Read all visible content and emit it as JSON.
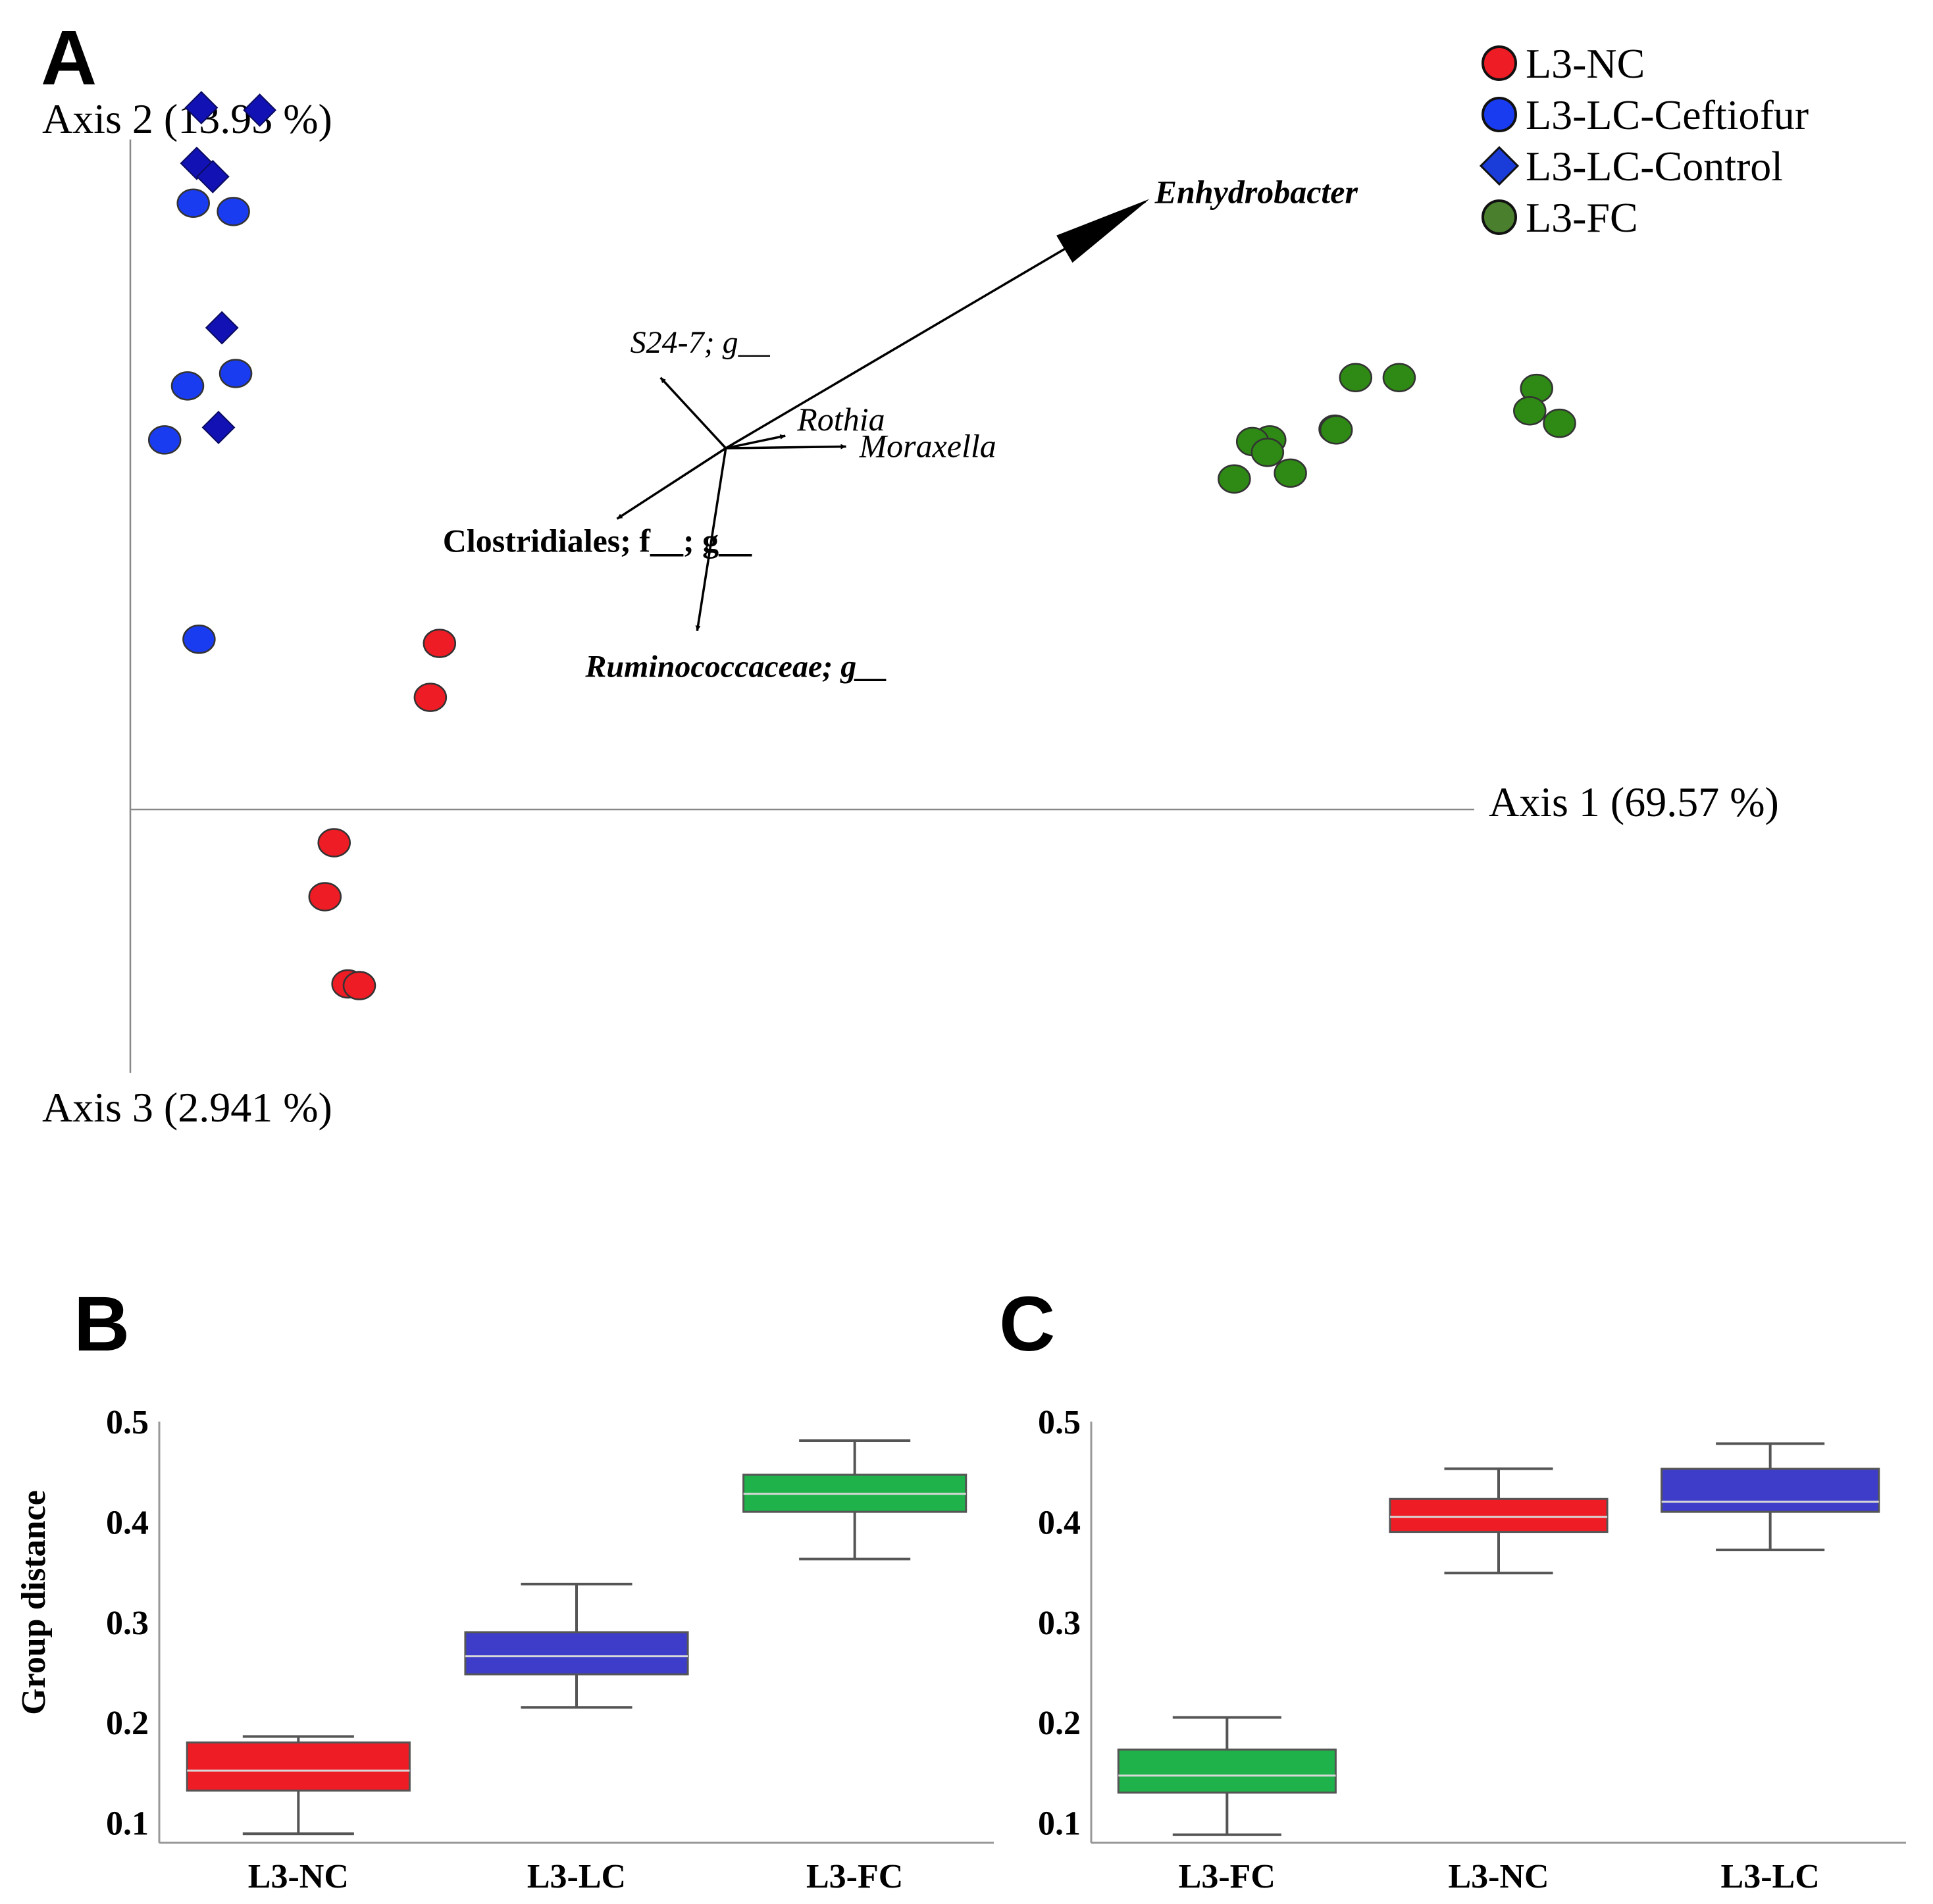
{
  "chart_data": [
    {
      "panel": "A",
      "type": "scatter",
      "title": "",
      "axes": {
        "axis1": "Axis 1 (69.57 %)",
        "axis2": "Axis 2 (13.93 %)",
        "axis3": "Axis 3 (2.941 %)"
      },
      "legend_position": "top-right",
      "series": [
        {
          "name": "L3-NC",
          "shape": "circle",
          "color": "#ee1c24",
          "points": [
            [
              0.27,
              0.2
            ],
            [
              0.262,
              0.135
            ],
            [
              0.178,
              -0.04
            ],
            [
              0.17,
              -0.105
            ],
            [
              0.19,
              -0.21
            ],
            [
              0.2,
              -0.212
            ]
          ]
        },
        {
          "name": "L3-LC-Ceftiofur",
          "shape": "circle",
          "color": "#1a3cf0",
          "points": [
            [
              0.055,
              0.73
            ],
            [
              0.09,
              0.72
            ],
            [
              0.092,
              0.525
            ],
            [
              0.05,
              0.51
            ],
            [
              0.03,
              0.445
            ],
            [
              0.06,
              0.205
            ]
          ]
        },
        {
          "name": "L3-LC-Control",
          "shape": "diamond",
          "color": "#1212b4",
          "points": [
            [
              0.062,
              0.845
            ],
            [
              0.113,
              0.842
            ],
            [
              0.058,
              0.778
            ],
            [
              0.072,
              0.762
            ],
            [
              0.08,
              0.58
            ],
            [
              0.077,
              0.46
            ]
          ]
        },
        {
          "name": "L3-FC",
          "shape": "circle",
          "color": "#2e8a14",
          "points": [
            [
              1.07,
              0.52
            ],
            [
              1.108,
              0.52
            ],
            [
              1.228,
              0.507
            ],
            [
              1.222,
              0.48
            ],
            [
              1.248,
              0.465
            ],
            [
              1.052,
              0.458
            ],
            [
              1.053,
              0.457
            ],
            [
              0.995,
              0.445
            ],
            [
              0.98,
              0.443
            ],
            [
              0.993,
              0.43
            ],
            [
              1.013,
              0.405
            ],
            [
              0.964,
              0.398
            ]
          ]
        }
      ],
      "biplot_origin": [
        0.52,
        0.435
      ],
      "biplot_arrows": [
        {
          "label": "Enhydrobacter",
          "end": [
            0.89,
            0.735
          ]
        },
        {
          "label": "S24-7; g__",
          "end": [
            0.463,
            0.52
          ]
        },
        {
          "label": "Rothia",
          "end": [
            0.572,
            0.45
          ]
        },
        {
          "label": "Moraxella",
          "end": [
            0.625,
            0.437
          ]
        },
        {
          "label": "Clostridiales; f__; g__",
          "end": [
            0.425,
            0.35
          ]
        },
        {
          "label": "Ruminococcaceae; g__",
          "end": [
            0.495,
            0.215
          ]
        }
      ]
    },
    {
      "panel": "B",
      "type": "box",
      "title": "",
      "xlabel": "",
      "ylabel": "Group distance",
      "ylim": [
        0.08,
        0.5
      ],
      "yticks": [
        "0.5",
        "0.4",
        "0.3",
        "0.2",
        "0.1"
      ],
      "ytick_values": [
        0.5,
        0.4,
        0.3,
        0.2,
        0.1
      ],
      "categories": [
        "L3-NC",
        "L3-LC",
        "L3-FC"
      ],
      "colors": [
        "#ee1c24",
        "#3d3dc9",
        "#1fb24a"
      ],
      "boxes": [
        {
          "min": 0.089,
          "q1": 0.132,
          "median": 0.152,
          "q3": 0.18,
          "max": 0.186
        },
        {
          "min": 0.215,
          "q1": 0.248,
          "median": 0.266,
          "q3": 0.29,
          "max": 0.338
        },
        {
          "min": 0.363,
          "q1": 0.41,
          "median": 0.428,
          "q3": 0.447,
          "max": 0.481
        }
      ]
    },
    {
      "panel": "C",
      "type": "box",
      "title": "",
      "xlabel": "",
      "ylabel": "",
      "ylim": [
        0.08,
        0.5
      ],
      "yticks": [
        "0.5",
        "0.4",
        "0.3",
        "0.2",
        "0.1"
      ],
      "ytick_values": [
        0.5,
        0.4,
        0.3,
        0.2,
        0.1
      ],
      "categories": [
        "L3-FC",
        "L3-NC",
        "L3-LC"
      ],
      "colors": [
        "#1fb24a",
        "#ee1c24",
        "#3d3dc9"
      ],
      "boxes": [
        {
          "min": 0.088,
          "q1": 0.13,
          "median": 0.147,
          "q3": 0.173,
          "max": 0.205
        },
        {
          "min": 0.349,
          "q1": 0.39,
          "median": 0.405,
          "q3": 0.423,
          "max": 0.453
        },
        {
          "min": 0.372,
          "q1": 0.41,
          "median": 0.42,
          "q3": 0.453,
          "max": 0.478
        }
      ]
    }
  ],
  "panel_labels": {
    "a": "A",
    "b": "B",
    "c": "C"
  }
}
